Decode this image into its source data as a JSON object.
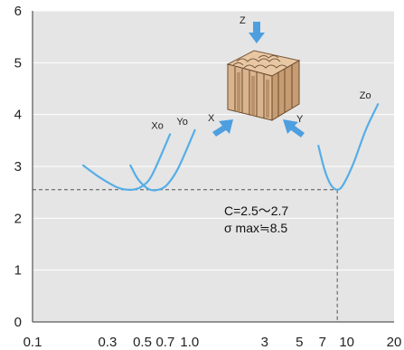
{
  "chart_data": {
    "type": "line",
    "title": "",
    "xlabel": "",
    "ylabel": "",
    "x_scale": "log",
    "xlim": [
      0.1,
      20
    ],
    "ylim": [
      0,
      6
    ],
    "grid": true,
    "plot_background": "#e5e5e5",
    "curve_color": "#56aee6",
    "arrow_color": "#4d9fe0",
    "x_ticks": [
      {
        "value": 0.1,
        "label": "0.1"
      },
      {
        "value": 0.3,
        "label": "0.3"
      },
      {
        "value": 0.5,
        "label": "0.5"
      },
      {
        "value": 0.7,
        "label": "0.7"
      },
      {
        "value": 1.0,
        "label": "1.0"
      },
      {
        "value": 3,
        "label": "3"
      },
      {
        "value": 5,
        "label": "5"
      },
      {
        "value": 7,
        "label": "7"
      },
      {
        "value": 10,
        "label": "10"
      },
      {
        "value": 20,
        "label": "20"
      }
    ],
    "y_ticks": [
      {
        "value": 0,
        "label": "0"
      },
      {
        "value": 1,
        "label": "1"
      },
      {
        "value": 2,
        "label": "2"
      },
      {
        "value": 3,
        "label": "3"
      },
      {
        "value": 4,
        "label": "4"
      },
      {
        "value": 5,
        "label": "5"
      },
      {
        "value": 6,
        "label": "6"
      }
    ],
    "series": [
      {
        "name": "Xo",
        "x": [
          0.21,
          0.27,
          0.35,
          0.43,
          0.5,
          0.58,
          0.75
        ],
        "y": [
          3.02,
          2.78,
          2.59,
          2.55,
          2.62,
          2.85,
          3.62
        ]
      },
      {
        "name": "Yo",
        "x": [
          0.42,
          0.47,
          0.55,
          0.63,
          0.72,
          0.85,
          1.08
        ],
        "y": [
          3.02,
          2.75,
          2.56,
          2.55,
          2.65,
          2.98,
          3.7
        ]
      },
      {
        "name": "Zo",
        "x": [
          6.6,
          7.2,
          7.9,
          8.7,
          9.5,
          11.0,
          13.2,
          15.8
        ],
        "y": [
          3.4,
          2.95,
          2.65,
          2.55,
          2.65,
          3.05,
          3.7,
          4.2
        ]
      }
    ],
    "reference_lines": {
      "y": 2.55,
      "x": 8.7
    },
    "annotations": {
      "line1": "C=2.5～2.7",
      "line2": "σ max≒8.5"
    },
    "direction_labels": {
      "z": "Z",
      "x": "X",
      "y": "Y"
    }
  }
}
